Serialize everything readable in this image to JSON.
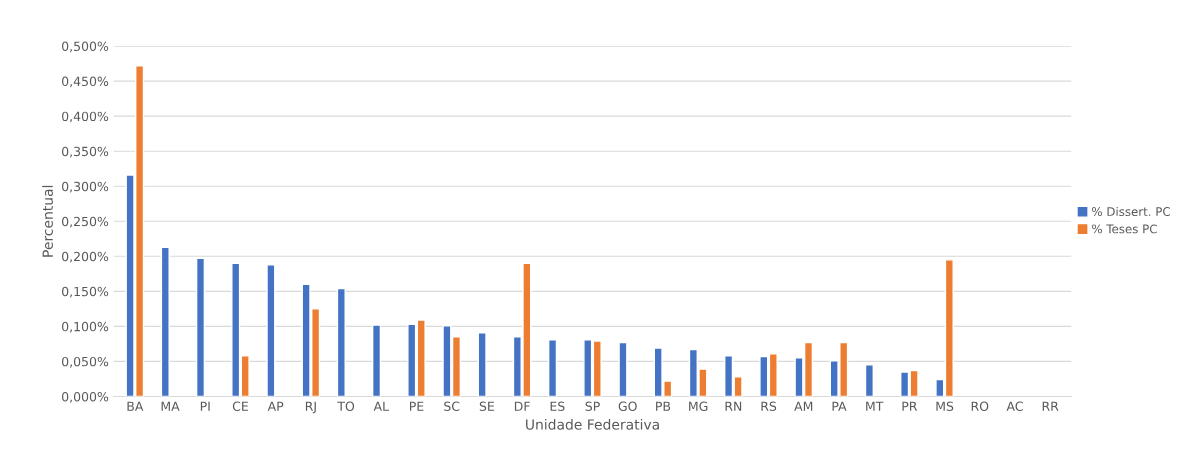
{
  "chart_data": {
    "type": "bar",
    "xlabel": "Unidade Federativa",
    "ylabel": "Percentual",
    "categories": [
      "BA",
      "MA",
      "PI",
      "CE",
      "AP",
      "RJ",
      "TO",
      "AL",
      "PE",
      "SC",
      "SE",
      "DF",
      "ES",
      "SP",
      "GO",
      "PB",
      "MG",
      "RN",
      "RS",
      "AM",
      "PA",
      "MT",
      "PR",
      "MS",
      "RO",
      "AC",
      "RR"
    ],
    "series": [
      {
        "name": "% Dissert. PC",
        "color": "#4472c4",
        "values": [
          0.316,
          0.213,
          0.197,
          0.19,
          0.188,
          0.16,
          0.154,
          0.102,
          0.103,
          0.101,
          0.091,
          0.085,
          0.081,
          0.081,
          0.077,
          0.069,
          0.067,
          0.058,
          0.057,
          0.055,
          0.051,
          0.045,
          0.035,
          0.024,
          null,
          null,
          null
        ]
      },
      {
        "name": "% Teses PC",
        "color": "#ed7d31",
        "values": [
          0.472,
          null,
          null,
          0.058,
          null,
          0.125,
          null,
          null,
          0.109,
          0.085,
          null,
          0.19,
          null,
          0.079,
          null,
          0.022,
          0.039,
          0.028,
          0.061,
          0.077,
          0.077,
          null,
          0.037,
          0.195,
          null,
          null,
          null
        ]
      }
    ],
    "ylim": [
      0,
      0.5
    ],
    "yticks": [
      {
        "value": 0,
        "label": "0,000%"
      },
      {
        "value": 0.05,
        "label": "0,050%"
      },
      {
        "value": 0.1,
        "label": "0,100%"
      },
      {
        "value": 0.15,
        "label": "0,150%"
      },
      {
        "value": 0.2,
        "label": "0,200%"
      },
      {
        "value": 0.25,
        "label": "0,250%"
      },
      {
        "value": 0.3,
        "label": "0,300%"
      },
      {
        "value": 0.35,
        "label": "0,350%"
      },
      {
        "value": 0.4,
        "label": "0,400%"
      },
      {
        "value": 0.45,
        "label": "0,450%"
      },
      {
        "value": 0.5,
        "label": "0,500%"
      }
    ],
    "grid": "y",
    "legend": "right"
  }
}
